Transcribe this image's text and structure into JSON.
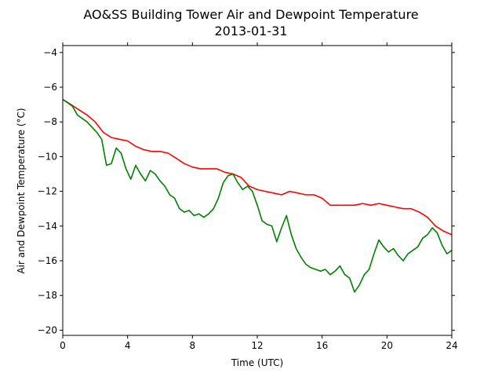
{
  "chart_data": {
    "type": "line",
    "title": "AO&SS Building Tower Air and Dewpoint Temperature",
    "subtitle": "2013-01-31",
    "xlabel": "Time (UTC)",
    "ylabel": "Air and Dewpoint Temperature (°C)",
    "xlim": [
      0,
      24
    ],
    "ylim": [
      -20.3,
      -3.6
    ],
    "x_ticks": [
      0,
      4,
      8,
      12,
      16,
      20,
      24
    ],
    "x_tick_labels": [
      "0",
      "4",
      "8",
      "12",
      "16",
      "20",
      "24"
    ],
    "y_ticks": [
      -20,
      -18,
      -16,
      -14,
      -12,
      -10,
      -8,
      -6,
      -4
    ],
    "y_tick_labels": [
      "−20",
      "−18",
      "−16",
      "−14",
      "−12",
      "−10",
      "−8",
      "−6",
      "−4"
    ],
    "grid": false,
    "legend": "none",
    "series": [
      {
        "color": "#ff0000",
        "x": [
          0,
          0.5,
          1,
          1.5,
          2,
          2.5,
          3,
          3.5,
          4,
          4.5,
          5,
          5.5,
          6,
          6.5,
          7,
          7.5,
          8,
          8.5,
          9,
          9.5,
          10,
          10.5,
          11,
          11.5,
          12,
          12.5,
          13,
          13.5,
          14,
          14.5,
          15,
          15.5,
          16,
          16.5,
          17,
          17.5,
          18,
          18.5,
          19,
          19.5,
          20,
          20.5,
          21,
          21.5,
          22,
          22.5,
          23,
          23.5,
          24
        ],
        "values": [
          -6.7,
          -7.0,
          -7.3,
          -7.6,
          -8.0,
          -8.6,
          -8.9,
          -9.0,
          -9.1,
          -9.4,
          -9.6,
          -9.7,
          -9.7,
          -9.8,
          -10.1,
          -10.4,
          -10.6,
          -10.7,
          -10.7,
          -10.7,
          -10.9,
          -11.0,
          -11.2,
          -11.7,
          -11.9,
          -12.0,
          -12.1,
          -12.2,
          -12.0,
          -12.1,
          -12.2,
          -12.2,
          -12.4,
          -12.8,
          -12.8,
          -12.8,
          -12.8,
          -12.7,
          -12.8,
          -12.7,
          -12.8,
          -12.9,
          -13.0,
          -13.0,
          -13.2,
          -13.5,
          -14.0,
          -14.3,
          -14.5
        ]
      },
      {
        "color": "#008000",
        "x": [
          0,
          0.3,
          0.6,
          0.9,
          1.2,
          1.5,
          1.8,
          2.1,
          2.4,
          2.7,
          3.0,
          3.3,
          3.6,
          3.9,
          4.2,
          4.5,
          4.8,
          5.1,
          5.4,
          5.7,
          6.0,
          6.3,
          6.6,
          6.9,
          7.2,
          7.5,
          7.8,
          8.1,
          8.4,
          8.7,
          9.0,
          9.3,
          9.6,
          9.9,
          10.2,
          10.5,
          10.8,
          11.1,
          11.4,
          11.7,
          12.0,
          12.3,
          12.6,
          12.9,
          13.2,
          13.5,
          13.8,
          14.1,
          14.4,
          14.7,
          15.0,
          15.3,
          15.6,
          15.9,
          16.2,
          16.5,
          16.8,
          17.1,
          17.4,
          17.7,
          18.0,
          18.3,
          18.6,
          18.9,
          19.2,
          19.5,
          19.8,
          20.1,
          20.4,
          20.7,
          21.0,
          21.3,
          21.6,
          21.9,
          22.2,
          22.5,
          22.8,
          23.1,
          23.4,
          23.7,
          24.0
        ],
        "values": [
          -6.7,
          -6.9,
          -7.1,
          -7.6,
          -7.8,
          -8.0,
          -8.3,
          -8.6,
          -9.0,
          -10.5,
          -10.4,
          -9.5,
          -9.8,
          -10.7,
          -11.3,
          -10.5,
          -11.0,
          -11.4,
          -10.8,
          -11.0,
          -11.4,
          -11.7,
          -12.2,
          -12.4,
          -13.0,
          -13.2,
          -13.1,
          -13.4,
          -13.3,
          -13.5,
          -13.3,
          -13.0,
          -12.4,
          -11.5,
          -11.1,
          -11.0,
          -11.5,
          -11.9,
          -11.7,
          -12.0,
          -12.8,
          -13.7,
          -13.9,
          -14.0,
          -14.9,
          -14.1,
          -13.4,
          -14.5,
          -15.3,
          -15.8,
          -16.2,
          -16.4,
          -16.5,
          -16.6,
          -16.5,
          -16.8,
          -16.6,
          -16.3,
          -16.8,
          -17.0,
          -17.8,
          -17.4,
          -16.8,
          -16.5,
          -15.6,
          -14.8,
          -15.2,
          -15.5,
          -15.3,
          -15.7,
          -16.0,
          -15.6,
          -15.4,
          -15.2,
          -14.7,
          -14.5,
          -14.1,
          -14.4,
          -15.1,
          -15.6,
          -15.4
        ]
      }
    ]
  }
}
